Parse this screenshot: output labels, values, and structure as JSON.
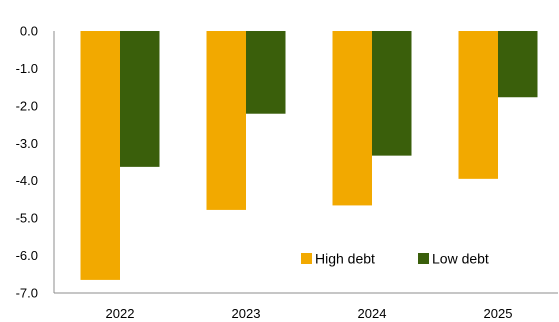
{
  "chart_data": {
    "type": "bar",
    "categories": [
      "2022",
      "2023",
      "2024",
      "2025"
    ],
    "series": [
      {
        "name": "High debt",
        "color": "#F2A900",
        "values": [
          -6.65,
          -4.78,
          -4.66,
          -3.95
        ]
      },
      {
        "name": "Low debt",
        "color": "#3A5F0B",
        "values": [
          -3.63,
          -2.21,
          -3.33,
          -1.77
        ]
      }
    ],
    "ylim": [
      -7.0,
      0.0
    ],
    "yticks": [
      "0.0",
      "-1.0",
      "-2.0",
      "-3.0",
      "-4.0",
      "-5.0",
      "-6.0",
      "-7.0"
    ],
    "legend_position": "bottom-right inside plot",
    "grid": false
  }
}
